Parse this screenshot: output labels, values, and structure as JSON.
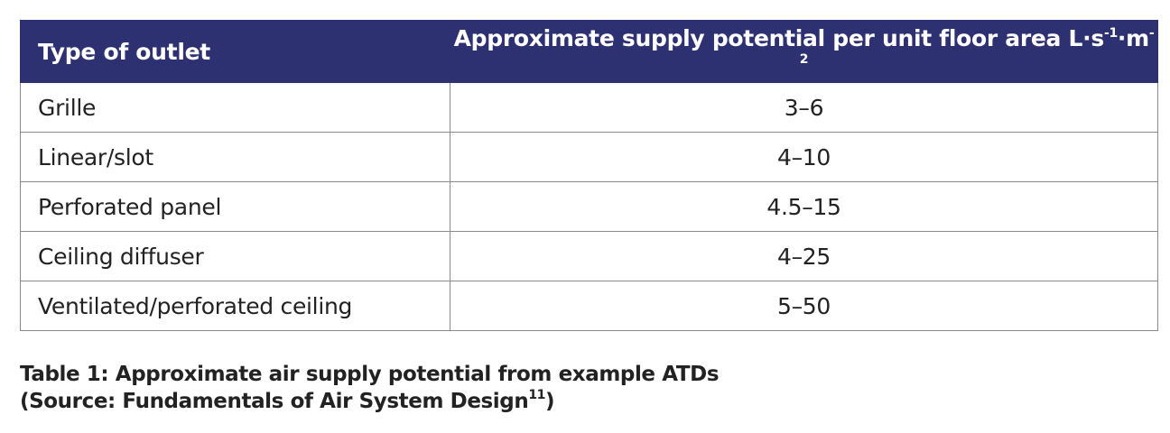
{
  "table": {
    "header": [
      "Type of outlet",
      [
        "Approximate supply potential per unit floor area L·s",
        "-1",
        "·m",
        "-2"
      ]
    ],
    "rows": [
      [
        "Grille",
        "3–6"
      ],
      [
        "Linear/slot",
        "4–10"
      ],
      [
        "Perforated panel",
        "4.5–15"
      ],
      [
        "Ceiling diffuser",
        "4–25"
      ],
      [
        "Ventilated/perforated ceiling",
        "5–50"
      ]
    ]
  },
  "caption": {
    "line1": "Table 1: Approximate air supply potential from example ATDs",
    "line2": [
      "(Source: Fundamentals of Air System Design",
      "11",
      ")"
    ]
  }
}
